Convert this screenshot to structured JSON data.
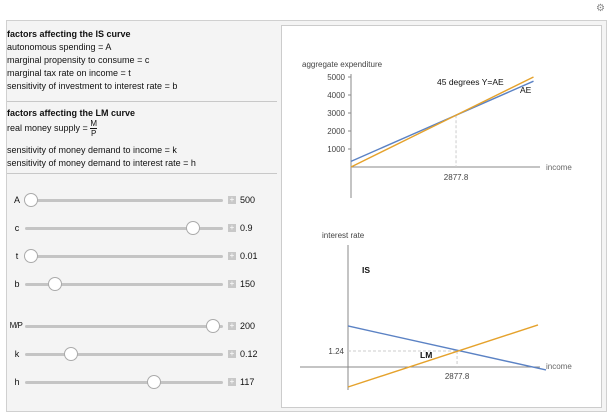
{
  "is_section": {
    "title": "factors affecting the IS curve",
    "lines": [
      "autonomous spending = A",
      "marginal propensity to consume = c",
      "marginal tax rate on income = t",
      "sensitivity of investment to interest rate = b"
    ]
  },
  "lm_section": {
    "title": "factors affecting the LM curve",
    "money_prefix": "real money supply =",
    "M": "M",
    "P": "P",
    "lines": [
      "sensitivity of money demand to income = k",
      "sensitivity of money demand to interest rate = h"
    ]
  },
  "sliders": [
    {
      "label": "A",
      "value": "500",
      "fraction": 0.03
    },
    {
      "label": "c",
      "value": "0.9",
      "fraction": 0.85
    },
    {
      "label": "t",
      "value": "0.01",
      "fraction": 0.03
    },
    {
      "label": "b",
      "value": "150",
      "fraction": 0.15
    },
    {
      "label": "M/P",
      "value": "200",
      "fraction": 0.95
    },
    {
      "label": "k",
      "value": "0.12",
      "fraction": 0.23
    },
    {
      "label": "h",
      "value": "117",
      "fraction": 0.65
    }
  ],
  "plus_glyph": "+",
  "top_plot": {
    "ylabel": "aggregate expenditure",
    "xlabel": "income",
    "yticks": [
      "5000",
      "4000",
      "3000",
      "2000",
      "1000"
    ],
    "ytick_values": [
      5000,
      4000,
      3000,
      2000,
      1000
    ],
    "eq_label": "2877.8",
    "eq": 2877.8,
    "label_45": "45 degrees Y=AE",
    "label_ae": "AE",
    "line_45": [
      [
        0,
        0
      ],
      [
        5000,
        5000
      ]
    ],
    "line_ae": [
      [
        0,
        313
      ],
      [
        5000,
        4768
      ]
    ],
    "color_45": "#e5a22c",
    "color_ae": "#5b82c4"
  },
  "bottom_plot": {
    "ylabel": "interest rate",
    "xlabel": "income",
    "r_label": "1.24",
    "r": 1.24,
    "y_label": "2877.8",
    "y": 2877.8,
    "label_is": "IS",
    "label_lm": "LM",
    "line_is": [
      [
        0,
        3.18
      ],
      [
        5224,
        -0.23
      ]
    ],
    "line_lm": [
      [
        0,
        -1.55
      ],
      [
        5013,
        3.26
      ]
    ]
  }
}
